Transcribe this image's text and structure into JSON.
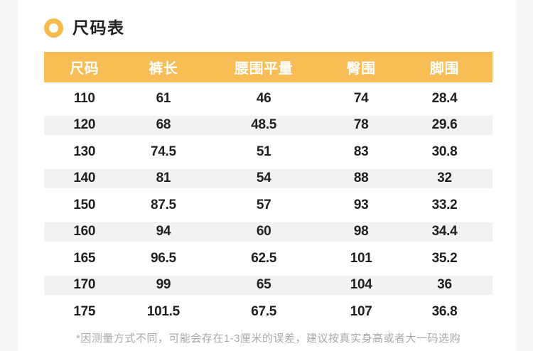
{
  "header": {
    "title": "尺码表"
  },
  "icons": {
    "section_marker": "orange-ring-circle"
  },
  "size_table": {
    "columns": [
      "尺码",
      "裤长",
      "腰围平量",
      "臀围",
      "脚围"
    ],
    "rows": [
      [
        "110",
        "61",
        "46",
        "74",
        "28.4"
      ],
      [
        "120",
        "68",
        "48.5",
        "78",
        "29.6"
      ],
      [
        "130",
        "74.5",
        "51",
        "83",
        "30.8"
      ],
      [
        "140",
        "81",
        "54",
        "88",
        "32"
      ],
      [
        "150",
        "87.5",
        "57",
        "93",
        "33.2"
      ],
      [
        "160",
        "94",
        "60",
        "98",
        "34.4"
      ],
      [
        "165",
        "96.5",
        "62.5",
        "101",
        "35.2"
      ],
      [
        "170",
        "99",
        "65",
        "104",
        "36"
      ],
      [
        "175",
        "101.5",
        "67.5",
        "107",
        "36.8"
      ]
    ]
  },
  "footnote": "*因测量方式不同，可能会存在1-3厘米的误差，建议按真实身高或者大一码选购",
  "colors": {
    "accent": "#F8BD55",
    "ring": "#F7BA4E",
    "stripe": "#F2F2F2",
    "margin_background": "#F7F7F7",
    "body_text": "#1F1F1F",
    "header_text": "#FFFFFF",
    "footnote_text": "#A8A8A8"
  }
}
